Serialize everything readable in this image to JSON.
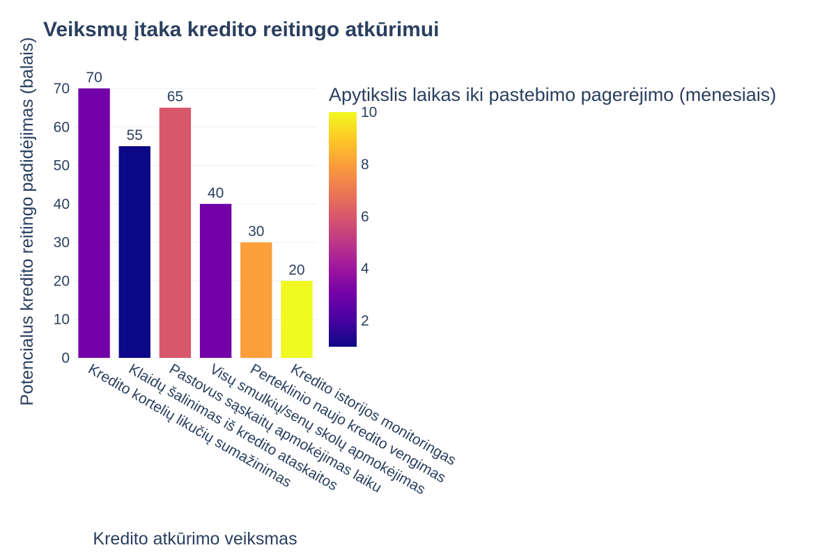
{
  "chart_data": {
    "type": "bar",
    "title": "Veiksmų įtaka kredito reitingo atkūrimui",
    "xlabel": "Kredito atkūrimo veiksmas",
    "ylabel": "Potencialus kredito reitingo padidėjimas (balais)",
    "categories": [
      "Kredito kortelių likučių sumažinimas",
      "Klaidų šalinimas iš kredito ataskaitos",
      "Pastovus sąskaitų apmokėjimas laiku",
      "Visų smulkių/senų skolų apmokėjimas",
      "Perteklinio naujo kredito vengimas",
      "Kredito istorijos monitoringas"
    ],
    "values": [
      70,
      55,
      65,
      40,
      30,
      20
    ],
    "data_labels": [
      "70",
      "55",
      "65",
      "40",
      "30",
      "20"
    ],
    "color_values": [
      3,
      1,
      6,
      3,
      8,
      10
    ],
    "ylim": [
      0,
      70
    ],
    "yticks": [
      "0",
      "10",
      "20",
      "30",
      "40",
      "50",
      "60",
      "70"
    ],
    "grid": true,
    "colorbar": {
      "title": "Apytikslis laikas iki pastebimo pagerėjimo (mėnesiais)",
      "range": [
        1,
        10
      ],
      "ticks": [
        "2",
        "4",
        "6",
        "8",
        "10"
      ],
      "colorscale": [
        "#0d0887",
        "#46039f",
        "#7201a8",
        "#9c179e",
        "#bd3786",
        "#d8576b",
        "#ed7953",
        "#fb9f3a",
        "#fdca26",
        "#f0f921"
      ]
    }
  }
}
